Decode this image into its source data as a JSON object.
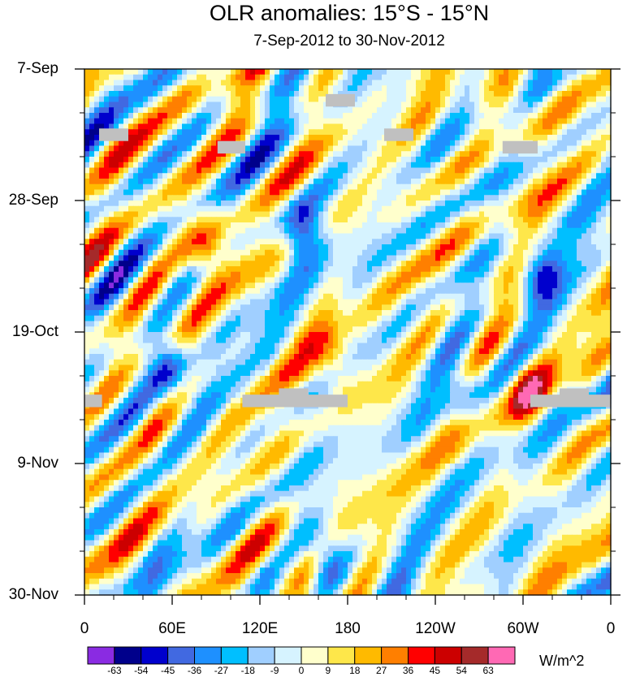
{
  "chart_data": {
    "type": "heatmap",
    "title": "OLR anomalies: 15°S - 15°N",
    "subtitle": "7-Sep-2012 to 30-Nov-2012",
    "x_tick_labels": [
      "0",
      "60E",
      "120E",
      "180",
      "120W",
      "60W",
      "0"
    ],
    "x_range_deg_east": [
      0,
      360
    ],
    "y_tick_labels": [
      "7-Sep",
      "28-Sep",
      "19-Oct",
      "9-Nov",
      "30-Nov"
    ],
    "y_range_days": [
      0,
      84
    ],
    "colorbar": {
      "levels": [
        -63,
        -54,
        -45,
        -36,
        -27,
        -18,
        -9,
        0,
        9,
        18,
        27,
        36,
        45,
        54,
        63
      ],
      "level_labels": [
        "-63",
        "-54",
        "-45",
        "-36",
        "-27",
        "-18",
        "-9",
        "0",
        "9",
        "18",
        "27",
        "36",
        "45",
        "54",
        "63"
      ],
      "colors": [
        "#8a2be2",
        "#00008b",
        "#0000cd",
        "#4169e1",
        "#1e90ff",
        "#00bfff",
        "#a0cfff",
        "#d6f3ff",
        "#ffffcc",
        "#fee74a",
        "#ffba00",
        "#ff7f00",
        "#ff0000",
        "#cc0000",
        "#a52a2a",
        "#ff69b4"
      ],
      "units": "W/m^2"
    },
    "missing_color": "#c0c0c0",
    "features": [
      {
        "name": "positive anomaly",
        "lon": 82,
        "day": 28,
        "value": 45
      },
      {
        "name": "negative anomaly",
        "lon": 150,
        "day": 26,
        "value": -54
      },
      {
        "name": "negative anomaly",
        "lon": 58,
        "day": 48,
        "value": -45
      },
      {
        "name": "positive anomaly",
        "lon": 170,
        "day": 47,
        "value": 36
      },
      {
        "name": "positive anomaly",
        "lon": 305,
        "day": 52,
        "value": 45
      },
      {
        "name": "positive anomaly",
        "lon": 135,
        "day": 77,
        "value": 27
      },
      {
        "name": "negative anomaly",
        "lon": 165,
        "day": 78,
        "value": -45
      },
      {
        "name": "negative anomaly",
        "lon": 312,
        "day": 33,
        "value": -45
      },
      {
        "name": "negative anomaly",
        "lon": 260,
        "day": 52,
        "value": -27
      },
      {
        "name": "positive anomaly",
        "lon": 295,
        "day": 5,
        "value": 27
      }
    ],
    "missing_bands": [
      {
        "lon": [
          10,
          30
        ],
        "day": [
          9.5,
          11.5
        ]
      },
      {
        "lon": [
          91,
          110
        ],
        "day": [
          11.5,
          13.5
        ]
      },
      {
        "lon": [
          165,
          185
        ],
        "day": [
          4,
          6
        ]
      },
      {
        "lon": [
          205,
          225
        ],
        "day": [
          9.5,
          11.5
        ]
      },
      {
        "lon": [
          286,
          310
        ],
        "day": [
          11.5,
          13.5
        ]
      },
      {
        "lon": [
          0,
          12
        ],
        "day": [
          52,
          54
        ]
      },
      {
        "lon": [
          108,
          180
        ],
        "day": [
          52,
          54
        ]
      },
      {
        "lon": [
          133,
          153
        ],
        "day": [
          51,
          52.5
        ]
      },
      {
        "lon": [
          305,
          360
        ],
        "day": [
          52,
          54
        ]
      },
      {
        "lon": [
          325,
          345
        ],
        "day": [
          51,
          52.5
        ]
      }
    ]
  }
}
